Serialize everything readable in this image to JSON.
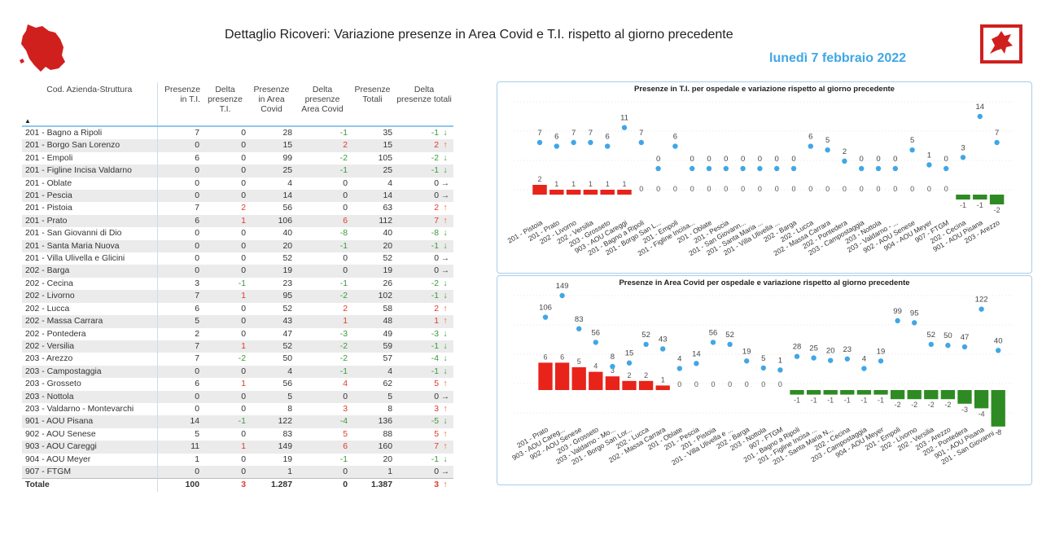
{
  "header": {
    "title": "Dettaglio Ricoveri: Variazione presenze in Area Covid e T.I. rispetto al giorno precedente",
    "date": "lunedì 7 febbraio 2022"
  },
  "colors": {
    "accent": "#3fa7e6",
    "positive": "#e0382b",
    "negative": "#3a9a3a",
    "dot": "#3fa7e6",
    "bar_neg": "#2e8b23",
    "bar_pos": "#e8231a"
  },
  "table": {
    "columns": [
      "Cod. Azienda-Struttura",
      "Presenze in T.I.",
      "Delta presenze T.I.",
      "Presenze in Area Covid",
      "Delta presenze Area Covid",
      "Presenze Totali",
      "Delta presenze totali"
    ],
    "rows": [
      [
        "201 - Bagno a Ripoli",
        "7",
        "0",
        "28",
        "-1",
        "35",
        "-1",
        "down"
      ],
      [
        "201 - Borgo San Lorenzo",
        "0",
        "0",
        "15",
        "2",
        "15",
        "2",
        "up"
      ],
      [
        "201 - Empoli",
        "6",
        "0",
        "99",
        "-2",
        "105",
        "-2",
        "down"
      ],
      [
        "201 - Figline Incisa Valdarno",
        "0",
        "0",
        "25",
        "-1",
        "25",
        "-1",
        "down"
      ],
      [
        "201 - Oblate",
        "0",
        "0",
        "4",
        "0",
        "4",
        "0",
        "right"
      ],
      [
        "201 - Pescia",
        "0",
        "0",
        "14",
        "0",
        "14",
        "0",
        "right"
      ],
      [
        "201 - Pistoia",
        "7",
        "2",
        "56",
        "0",
        "63",
        "2",
        "up"
      ],
      [
        "201 - Prato",
        "6",
        "1",
        "106",
        "6",
        "112",
        "7",
        "up"
      ],
      [
        "201 - San Giovanni di Dio",
        "0",
        "0",
        "40",
        "-8",
        "40",
        "-8",
        "down"
      ],
      [
        "201 - Santa Maria Nuova",
        "0",
        "0",
        "20",
        "-1",
        "20",
        "-1",
        "down"
      ],
      [
        "201 - Villa Ulivella e Glicini",
        "0",
        "0",
        "52",
        "0",
        "52",
        "0",
        "right"
      ],
      [
        "202 - Barga",
        "0",
        "0",
        "19",
        "0",
        "19",
        "0",
        "right"
      ],
      [
        "202 - Cecina",
        "3",
        "-1",
        "23",
        "-1",
        "26",
        "-2",
        "down"
      ],
      [
        "202 - Livorno",
        "7",
        "1",
        "95",
        "-2",
        "102",
        "-1",
        "down"
      ],
      [
        "202 - Lucca",
        "6",
        "0",
        "52",
        "2",
        "58",
        "2",
        "up"
      ],
      [
        "202 - Massa Carrara",
        "5",
        "0",
        "43",
        "1",
        "48",
        "1",
        "up"
      ],
      [
        "202 - Pontedera",
        "2",
        "0",
        "47",
        "-3",
        "49",
        "-3",
        "down"
      ],
      [
        "202 - Versilia",
        "7",
        "1",
        "52",
        "-2",
        "59",
        "-1",
        "down"
      ],
      [
        "203 - Arezzo",
        "7",
        "-2",
        "50",
        "-2",
        "57",
        "-4",
        "down"
      ],
      [
        "203 - Campostaggia",
        "0",
        "0",
        "4",
        "-1",
        "4",
        "-1",
        "down"
      ],
      [
        "203 - Grosseto",
        "6",
        "1",
        "56",
        "4",
        "62",
        "5",
        "up"
      ],
      [
        "203 - Nottola",
        "0",
        "0",
        "5",
        "0",
        "5",
        "0",
        "right"
      ],
      [
        "203 - Valdarno - Montevarchi",
        "0",
        "0",
        "8",
        "3",
        "8",
        "3",
        "up"
      ],
      [
        "901 - AOU Pisana",
        "14",
        "-1",
        "122",
        "-4",
        "136",
        "-5",
        "down"
      ],
      [
        "902 - AOU Senese",
        "5",
        "0",
        "83",
        "5",
        "88",
        "5",
        "up"
      ],
      [
        "903 - AOU Careggi",
        "11",
        "1",
        "149",
        "6",
        "160",
        "7",
        "up"
      ],
      [
        "904 - AOU Meyer",
        "1",
        "0",
        "19",
        "-1",
        "20",
        "-1",
        "down"
      ],
      [
        "907 - FTGM",
        "0",
        "0",
        "1",
        "0",
        "1",
        "0",
        "right"
      ]
    ],
    "total": [
      "Totale",
      "100",
      "3",
      "1.287",
      "0",
      "1.387",
      "3",
      "up"
    ]
  },
  "chart_data": [
    {
      "type": "bar",
      "title": "Presenze in T.I. per ospedale e variazione rispetto al giorno precedente",
      "categories": [
        "201 - Pistoia",
        "201 - Prato",
        "202 - Livorno",
        "202 - Versilia",
        "203 - Grosseto",
        "903 - AOU Careggi",
        "201 - Bagno a Ripoli",
        "201 - Borgo San L...",
        "201 - Empoli",
        "201 - Figline Incisa...",
        "201 - Oblate",
        "201 - Pescia",
        "201 - San Giovann...",
        "201 - Santa Maria ...",
        "201 - Villa Ulivella ...",
        "202 - Barga",
        "202 - Lucca",
        "202 - Massa Carrara",
        "202 - Pontedera",
        "203 - Campostaggia",
        "203 - Nottola",
        "203 - Valdarno - ...",
        "902 - AOU Senese",
        "904 - AOU Meyer",
        "907 - FTGM",
        "202 - Cecina",
        "901 - AOU Pisana",
        "203 - Arezzo"
      ],
      "series": [
        {
          "values": [
            7,
            6,
            7,
            7,
            6,
            11,
            7,
            0,
            6,
            0,
            0,
            0,
            0,
            0,
            0,
            0,
            6,
            5,
            2,
            0,
            0,
            0,
            5,
            1,
            0,
            3,
            14,
            7
          ]
        },
        {
          "values": [
            2,
            1,
            1,
            1,
            1,
            1,
            0,
            0,
            0,
            0,
            0,
            0,
            0,
            0,
            0,
            0,
            0,
            0,
            0,
            0,
            0,
            0,
            0,
            0,
            0,
            -1,
            -1,
            -2
          ]
        }
      ]
    },
    {
      "type": "bar",
      "title": "Presenze in Area Covid per ospedale e variazione rispetto al giorno precedente",
      "categories": [
        "201 - Prato",
        "903 - AOU Careg...",
        "902 - AOU Senese",
        "203 - Grosseto",
        "203 - Valdarno - Mo...",
        "201 - Borgo San Lor...",
        "202 - Lucca",
        "202 - Massa Carrara",
        "201 - Oblate",
        "201 - Pescia",
        "201 - Pistoia",
        "201 - Villa Ulivella e ...",
        "202 - Barga",
        "203 - Nottola",
        "907 - FTGM",
        "201 - Bagno a Ripoli",
        "201 - Figline Incisa ...",
        "201 - Santa Maria N...",
        "202 - Cecina",
        "203 - Campostaggia",
        "904 - AOU Meyer",
        "201 - Empoli",
        "202 - Livorno",
        "202 - Versilia",
        "203 - Arezzo",
        "202 - Pontedera",
        "901 - AOU Pisana",
        "201 - San Giovanni ..."
      ],
      "series": [
        {
          "values": [
            106,
            149,
            83,
            56,
            8,
            15,
            52,
            43,
            4,
            14,
            56,
            52,
            19,
            5,
            1,
            28,
            25,
            20,
            23,
            4,
            19,
            99,
            95,
            52,
            50,
            47,
            122,
            40
          ]
        },
        {
          "values": [
            6,
            6,
            5,
            4,
            3,
            2,
            2,
            1,
            0,
            0,
            0,
            0,
            0,
            0,
            0,
            -1,
            -1,
            -1,
            -1,
            -1,
            -1,
            -2,
            -2,
            -2,
            -2,
            -3,
            -4,
            -8
          ]
        }
      ]
    }
  ]
}
